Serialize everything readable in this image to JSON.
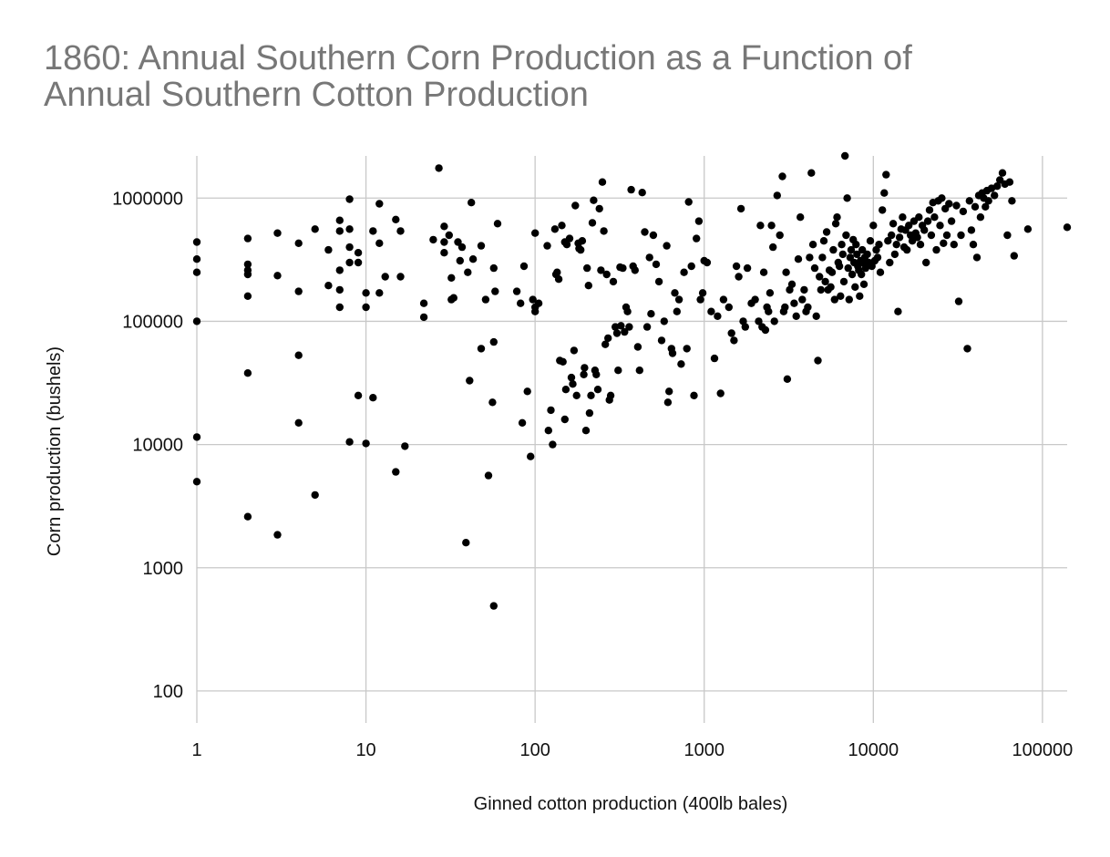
{
  "chart_data": {
    "type": "scatter",
    "title": [
      "1860: Annual Southern Corn Production as a Function of",
      "Annual Southern Cotton Production"
    ],
    "xlabel": "Ginned cotton production (400lb bales)",
    "ylabel": "Corn production (bushels)",
    "x_scale": "log",
    "y_scale": "log",
    "xlim": [
      1,
      140000
    ],
    "ylim": [
      55,
      2200000
    ],
    "x_ticks": [
      1,
      10,
      100,
      1000,
      10000,
      100000
    ],
    "x_tick_labels": [
      "1",
      "10",
      "100",
      "1000",
      "10000",
      "100000"
    ],
    "y_ticks": [
      100,
      1000,
      10000,
      100000,
      1000000
    ],
    "y_tick_labels": [
      "100",
      "1000",
      "10000",
      "100000",
      "1000000"
    ],
    "grid": true,
    "marker_color": "#000000",
    "points": [
      [
        1,
        440000
      ],
      [
        1,
        320000
      ],
      [
        1,
        250000
      ],
      [
        1,
        100000
      ],
      [
        1,
        11500
      ],
      [
        1,
        5000
      ],
      [
        2,
        470000
      ],
      [
        2,
        290000
      ],
      [
        2,
        260000
      ],
      [
        2,
        240000
      ],
      [
        2,
        160000
      ],
      [
        2,
        38000
      ],
      [
        2,
        2600
      ],
      [
        3,
        520000
      ],
      [
        3,
        235000
      ],
      [
        3,
        1850
      ],
      [
        4,
        430000
      ],
      [
        4,
        175000
      ],
      [
        4,
        53000
      ],
      [
        4,
        15000
      ],
      [
        5,
        560000
      ],
      [
        5,
        3900
      ],
      [
        6,
        380000
      ],
      [
        6,
        195000
      ],
      [
        7,
        660000
      ],
      [
        7,
        540000
      ],
      [
        7,
        260000
      ],
      [
        7,
        180000
      ],
      [
        7,
        130000
      ],
      [
        8,
        980000
      ],
      [
        8,
        560000
      ],
      [
        8,
        400000
      ],
      [
        8,
        300000
      ],
      [
        8,
        10500
      ],
      [
        9,
        360000
      ],
      [
        9,
        300000
      ],
      [
        9,
        25000
      ],
      [
        10,
        170000
      ],
      [
        10,
        130000
      ],
      [
        10,
        10200
      ],
      [
        11,
        540000
      ],
      [
        11,
        24000
      ],
      [
        12,
        900000
      ],
      [
        12,
        430000
      ],
      [
        12,
        170000
      ],
      [
        13,
        230000
      ],
      [
        15,
        670000
      ],
      [
        15,
        6000
      ],
      [
        16,
        540000
      ],
      [
        16,
        230000
      ],
      [
        17,
        9700
      ],
      [
        22,
        140000
      ],
      [
        22,
        108000
      ],
      [
        25,
        460000
      ],
      [
        27,
        1750000
      ],
      [
        29,
        590000
      ],
      [
        29,
        440000
      ],
      [
        29,
        360000
      ],
      [
        31,
        500000
      ],
      [
        32,
        150000
      ],
      [
        32,
        225000
      ],
      [
        33,
        155000
      ],
      [
        35,
        440000
      ],
      [
        36,
        310000
      ],
      [
        37,
        400000
      ],
      [
        39,
        1600
      ],
      [
        40,
        250000
      ],
      [
        41,
        33000
      ],
      [
        42,
        920000
      ],
      [
        43,
        320000
      ],
      [
        48,
        410000
      ],
      [
        48,
        60000
      ],
      [
        51,
        150000
      ],
      [
        53,
        5600
      ],
      [
        56,
        22000
      ],
      [
        57,
        68000
      ],
      [
        57,
        490
      ],
      [
        57,
        270000
      ],
      [
        58,
        175000
      ],
      [
        60,
        620000
      ],
      [
        78,
        175000
      ],
      [
        82,
        140000
      ],
      [
        84,
        15000
      ],
      [
        86,
        280000
      ],
      [
        90,
        27000
      ],
      [
        94,
        8000
      ],
      [
        97,
        150000
      ],
      [
        100,
        520000
      ],
      [
        100,
        130000
      ],
      [
        100,
        120000
      ],
      [
        105,
        140000
      ],
      [
        118,
        410000
      ],
      [
        120,
        13000
      ],
      [
        124,
        19000
      ],
      [
        127,
        10000
      ],
      [
        131,
        560000
      ],
      [
        133,
        240000
      ],
      [
        135,
        250000
      ],
      [
        138,
        220000
      ],
      [
        140,
        48000
      ],
      [
        144,
        600000
      ],
      [
        146,
        47000
      ],
      [
        150,
        16000
      ],
      [
        150,
        440000
      ],
      [
        152,
        28000
      ],
      [
        154,
        420000
      ],
      [
        160,
        470000
      ],
      [
        164,
        35000
      ],
      [
        167,
        31000
      ],
      [
        170,
        58000
      ],
      [
        173,
        870000
      ],
      [
        176,
        25000
      ],
      [
        180,
        430000
      ],
      [
        182,
        390000
      ],
      [
        186,
        380000
      ],
      [
        190,
        450000
      ],
      [
        194,
        37000
      ],
      [
        196,
        42000
      ],
      [
        200,
        13000
      ],
      [
        203,
        270000
      ],
      [
        207,
        195000
      ],
      [
        210,
        18000
      ],
      [
        214,
        25000
      ],
      [
        218,
        630000
      ],
      [
        222,
        960000
      ],
      [
        226,
        40000
      ],
      [
        230,
        37000
      ],
      [
        235,
        28000
      ],
      [
        240,
        820000
      ],
      [
        245,
        260000
      ],
      [
        250,
        1350000
      ],
      [
        255,
        540000
      ],
      [
        260,
        65000
      ],
      [
        265,
        240000
      ],
      [
        270,
        73000
      ],
      [
        275,
        23000
      ],
      [
        280,
        25000
      ],
      [
        290,
        210000
      ],
      [
        298,
        90000
      ],
      [
        305,
        80000
      ],
      [
        310,
        40000
      ],
      [
        318,
        275000
      ],
      [
        322,
        92000
      ],
      [
        330,
        270000
      ],
      [
        338,
        82000
      ],
      [
        345,
        130000
      ],
      [
        352,
        120000
      ],
      [
        360,
        90000
      ],
      [
        370,
        1170000
      ],
      [
        380,
        280000
      ],
      [
        390,
        260000
      ],
      [
        405,
        62000
      ],
      [
        415,
        40000
      ],
      [
        430,
        1110000
      ],
      [
        445,
        530000
      ],
      [
        460,
        90000
      ],
      [
        475,
        330000
      ],
      [
        485,
        115000
      ],
      [
        500,
        500000
      ],
      [
        520,
        290000
      ],
      [
        540,
        210000
      ],
      [
        560,
        70000
      ],
      [
        580,
        100000
      ],
      [
        600,
        410000
      ],
      [
        610,
        22000
      ],
      [
        620,
        27000
      ],
      [
        640,
        60000
      ],
      [
        650,
        55000
      ],
      [
        670,
        170000
      ],
      [
        690,
        120000
      ],
      [
        710,
        150000
      ],
      [
        730,
        45000
      ],
      [
        760,
        250000
      ],
      [
        790,
        60000
      ],
      [
        810,
        930000
      ],
      [
        840,
        280000
      ],
      [
        870,
        25000
      ],
      [
        900,
        470000
      ],
      [
        930,
        650000
      ],
      [
        950,
        150000
      ],
      [
        980,
        170000
      ],
      [
        1000,
        310000
      ],
      [
        1040,
        300000
      ],
      [
        1100,
        120000
      ],
      [
        1150,
        50000
      ],
      [
        1200,
        110000
      ],
      [
        1250,
        26000
      ],
      [
        1300,
        150000
      ],
      [
        1400,
        130000
      ],
      [
        1450,
        80000
      ],
      [
        1500,
        70000
      ],
      [
        1550,
        280000
      ],
      [
        1600,
        230000
      ],
      [
        1650,
        820000
      ],
      [
        1700,
        100000
      ],
      [
        1750,
        90000
      ],
      [
        1800,
        270000
      ],
      [
        1900,
        140000
      ],
      [
        2000,
        150000
      ],
      [
        2100,
        100000
      ],
      [
        2150,
        600000
      ],
      [
        2200,
        90000
      ],
      [
        2250,
        250000
      ],
      [
        2300,
        85000
      ],
      [
        2350,
        130000
      ],
      [
        2400,
        120000
      ],
      [
        2450,
        170000
      ],
      [
        2500,
        600000
      ],
      [
        2550,
        400000
      ],
      [
        2600,
        100000
      ],
      [
        2700,
        1050000
      ],
      [
        2800,
        500000
      ],
      [
        2900,
        1500000
      ],
      [
        2950,
        120000
      ],
      [
        3000,
        130000
      ],
      [
        3050,
        250000
      ],
      [
        3100,
        34000
      ],
      [
        3200,
        180000
      ],
      [
        3300,
        200000
      ],
      [
        3400,
        140000
      ],
      [
        3500,
        110000
      ],
      [
        3600,
        320000
      ],
      [
        3700,
        700000
      ],
      [
        3800,
        150000
      ],
      [
        3900,
        180000
      ],
      [
        4000,
        120000
      ],
      [
        4100,
        130000
      ],
      [
        4200,
        330000
      ],
      [
        4300,
        1600000
      ],
      [
        4400,
        420000
      ],
      [
        4500,
        270000
      ],
      [
        4600,
        110000
      ],
      [
        4700,
        48000
      ],
      [
        4800,
        230000
      ],
      [
        4900,
        180000
      ],
      [
        5000,
        330000
      ],
      [
        5100,
        450000
      ],
      [
        5200,
        210000
      ],
      [
        5300,
        530000
      ],
      [
        5400,
        180000
      ],
      [
        5500,
        260000
      ],
      [
        5600,
        190000
      ],
      [
        5700,
        250000
      ],
      [
        5800,
        380000
      ],
      [
        5900,
        150000
      ],
      [
        6000,
        620000
      ],
      [
        6100,
        700000
      ],
      [
        6200,
        300000
      ],
      [
        6300,
        280000
      ],
      [
        6400,
        160000
      ],
      [
        6500,
        420000
      ],
      [
        6600,
        350000
      ],
      [
        6700,
        210000
      ],
      [
        6800,
        2200000
      ],
      [
        6900,
        500000
      ],
      [
        7000,
        1000000
      ],
      [
        7100,
        270000
      ],
      [
        7200,
        150000
      ],
      [
        7300,
        330000
      ],
      [
        7400,
        380000
      ],
      [
        7500,
        240000
      ],
      [
        7600,
        460000
      ],
      [
        7700,
        300000
      ],
      [
        7800,
        190000
      ],
      [
        7900,
        420000
      ],
      [
        8000,
        350000
      ],
      [
        8100,
        280000
      ],
      [
        8200,
        260000
      ],
      [
        8300,
        160000
      ],
      [
        8400,
        310000
      ],
      [
        8500,
        240000
      ],
      [
        8600,
        380000
      ],
      [
        8700,
        300000
      ],
      [
        8800,
        200000
      ],
      [
        8900,
        330000
      ],
      [
        9000,
        270000
      ],
      [
        9200,
        350000
      ],
      [
        9400,
        300000
      ],
      [
        9600,
        450000
      ],
      [
        9800,
        280000
      ],
      [
        10000,
        600000
      ],
      [
        10200,
        310000
      ],
      [
        10400,
        380000
      ],
      [
        10600,
        330000
      ],
      [
        10800,
        420000
      ],
      [
        11000,
        250000
      ],
      [
        11300,
        800000
      ],
      [
        11600,
        1100000
      ],
      [
        11900,
        1550000
      ],
      [
        12200,
        450000
      ],
      [
        12500,
        300000
      ],
      [
        12800,
        500000
      ],
      [
        13100,
        620000
      ],
      [
        13400,
        350000
      ],
      [
        13700,
        420000
      ],
      [
        14000,
        120000
      ],
      [
        14300,
        480000
      ],
      [
        14600,
        560000
      ],
      [
        14900,
        700000
      ],
      [
        15200,
        400000
      ],
      [
        15500,
        550000
      ],
      [
        15800,
        380000
      ],
      [
        16200,
        600000
      ],
      [
        16600,
        500000
      ],
      [
        17000,
        450000
      ],
      [
        17400,
        650000
      ],
      [
        17800,
        520000
      ],
      [
        18200,
        480000
      ],
      [
        18600,
        700000
      ],
      [
        19000,
        420000
      ],
      [
        19500,
        600000
      ],
      [
        20000,
        550000
      ],
      [
        20500,
        300000
      ],
      [
        21000,
        650000
      ],
      [
        21500,
        800000
      ],
      [
        22000,
        500000
      ],
      [
        22500,
        920000
      ],
      [
        23000,
        700000
      ],
      [
        23600,
        380000
      ],
      [
        24200,
        950000
      ],
      [
        24800,
        600000
      ],
      [
        25400,
        1000000
      ],
      [
        26000,
        430000
      ],
      [
        26600,
        820000
      ],
      [
        27200,
        500000
      ],
      [
        28000,
        900000
      ],
      [
        29000,
        650000
      ],
      [
        30000,
        420000
      ],
      [
        31000,
        870000
      ],
      [
        32000,
        145000
      ],
      [
        33000,
        500000
      ],
      [
        34000,
        780000
      ],
      [
        36000,
        60000
      ],
      [
        37000,
        950000
      ],
      [
        38000,
        550000
      ],
      [
        39000,
        420000
      ],
      [
        40000,
        850000
      ],
      [
        41000,
        330000
      ],
      [
        42000,
        1050000
      ],
      [
        43000,
        700000
      ],
      [
        44000,
        1100000
      ],
      [
        45000,
        1000000
      ],
      [
        46000,
        850000
      ],
      [
        47000,
        1150000
      ],
      [
        48000,
        950000
      ],
      [
        50000,
        1200000
      ],
      [
        52000,
        1050000
      ],
      [
        54000,
        1250000
      ],
      [
        56000,
        1400000
      ],
      [
        58000,
        1600000
      ],
      [
        60000,
        1300000
      ],
      [
        62000,
        500000
      ],
      [
        64000,
        1350000
      ],
      [
        66000,
        950000
      ],
      [
        68000,
        340000
      ],
      [
        82000,
        560000
      ],
      [
        140000,
        580000
      ]
    ]
  }
}
